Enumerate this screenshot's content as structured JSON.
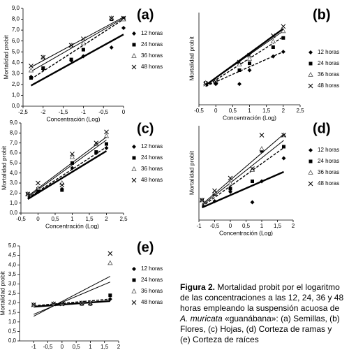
{
  "chart_data": [
    {
      "type": "scatter",
      "panel_label": "(a)",
      "x_label": "Concentración (Log)",
      "y_label": "Mortalidad probit",
      "xlim": [
        -2.5,
        0
      ],
      "ylim": [
        0,
        9
      ],
      "xticks": [
        {
          "value": -2.5,
          "label": "-2,5"
        },
        -2,
        {
          "value": -1.5,
          "label": "-1,5"
        },
        -1,
        {
          "value": -0.5,
          "label": "-0,5"
        },
        0
      ],
      "yticks": [
        {
          "value": 0,
          "label": "0,0"
        },
        {
          "value": 1,
          "label": "1,0"
        },
        {
          "value": 2,
          "label": "2,0"
        },
        {
          "value": 3,
          "label": "3,0"
        },
        {
          "value": 4,
          "label": "4,0"
        },
        {
          "value": 5,
          "label": "5,0"
        },
        {
          "value": 6,
          "label": "6,0"
        },
        {
          "value": 7,
          "label": "7,0"
        },
        {
          "value": 8,
          "label": "8,0"
        },
        {
          "value": 9,
          "label": "9,0"
        }
      ],
      "x": [
        -2.3,
        -2,
        -1.3,
        -1,
        -0.3,
        0
      ],
      "series": [
        {
          "name": "12 horas",
          "color": "#000000",
          "marker": "diamond",
          "line": "bold",
          "values": [
            2.7,
            3.4,
            4.2,
            4.6,
            5.4,
            7.2
          ],
          "trend": {
            "x": [
              -2.3,
              0
            ],
            "values": [
              1.9,
              6.6
            ]
          }
        },
        {
          "name": "24 horas",
          "color": "#000000",
          "marker": "square",
          "line": "dashed",
          "values": [
            2.6,
            3.5,
            4.3,
            5.2,
            8.0,
            8.1
          ],
          "trend": {
            "x": [
              -2.3,
              0
            ],
            "values": [
              2.5,
              8.0
            ]
          }
        },
        {
          "name": "36 horas",
          "color": "#000000",
          "marker": "triangle",
          "line": "thin",
          "values": [
            3.3,
            4.5,
            5.6,
            5.8,
            8.1,
            8.0
          ],
          "trend": {
            "x": [
              -2.3,
              0
            ],
            "values": [
              3.2,
              8.1
            ]
          }
        },
        {
          "name": "48 horas",
          "color": "#000000",
          "marker": "cross",
          "line": "thin",
          "values": [
            3.7,
            4.5,
            5.6,
            6.2,
            8.1,
            8.1
          ],
          "trend": {
            "x": [
              -2.3,
              0
            ],
            "values": [
              3.6,
              8.2
            ]
          }
        }
      ]
    },
    {
      "type": "scatter",
      "panel_label": "(b)",
      "x_label": "Concentración (Log)",
      "y_label": "Mortalidad probit",
      "xlim": [
        -0.5,
        2.5
      ],
      "ylim": [
        0,
        8
      ],
      "xticks": [
        {
          "value": -0.5,
          "label": "-0,5"
        },
        0,
        {
          "value": 0.5,
          "label": "0,5"
        },
        1,
        {
          "value": 1.5,
          "label": "1,5"
        },
        2,
        {
          "value": 2.5,
          "label": "2,5"
        }
      ],
      "x": [
        -0.3,
        0,
        0.7,
        1,
        1.7,
        2
      ],
      "series": [
        {
          "name": "12 horas",
          "color": "#000000",
          "marker": "diamond",
          "line": "dashed",
          "values": [
            1.9,
            1.8,
            1.8,
            3.0,
            4.2,
            4.6
          ],
          "trend": {
            "x": [
              -0.3,
              2
            ],
            "values": [
              1.6,
              4.6
            ]
          }
        },
        {
          "name": "24 horas",
          "color": "#000000",
          "marker": "square",
          "line": "dashed",
          "values": [
            1.9,
            1.9,
            3.0,
            3.6,
            5.0,
            5.8
          ],
          "trend": {
            "x": [
              -0.3,
              2
            ],
            "values": [
              1.6,
              5.9
            ]
          }
        },
        {
          "name": "36 horas",
          "color": "#000000",
          "marker": "triangle",
          "line": "thin",
          "values": [
            1.9,
            2.1,
            3.5,
            4.0,
            5.5,
            6.4
          ],
          "trend": {
            "x": [
              -0.3,
              2
            ],
            "values": [
              1.7,
              6.4
            ]
          }
        },
        {
          "name": "48 horas",
          "color": "#000000",
          "marker": "cross",
          "line": "bold",
          "values": [
            1.8,
            2.0,
            3.7,
            4.3,
            6.0,
            6.8
          ],
          "trend": {
            "x": [
              -0.3,
              2
            ],
            "values": [
              1.7,
              6.6
            ]
          }
        }
      ]
    },
    {
      "type": "scatter",
      "panel_label": "(c)",
      "x_label": "Concentración (Log)",
      "y_label": "Mortalidad probit",
      "xlim": [
        -0.5,
        2.5
      ],
      "ylim": [
        0,
        9
      ],
      "xticks": [
        {
          "value": -0.5,
          "label": "-0,5"
        },
        0,
        {
          "value": 0.5,
          "label": "0,5"
        },
        1,
        {
          "value": 1.5,
          "label": "1,5"
        },
        2,
        {
          "value": 2.5,
          "label": "2,5"
        }
      ],
      "yticks": [
        {
          "value": 0,
          "label": "0,0"
        },
        {
          "value": 1,
          "label": "1,0"
        },
        {
          "value": 2,
          "label": "2,0"
        },
        {
          "value": 3,
          "label": "3,0"
        },
        {
          "value": 4,
          "label": "4,0"
        },
        {
          "value": 5,
          "label": "5,0"
        },
        {
          "value": 6,
          "label": "6,0"
        },
        {
          "value": 7,
          "label": "7,0"
        },
        {
          "value": 8,
          "label": "8,0"
        },
        {
          "value": 9,
          "label": "9,0"
        }
      ],
      "x": [
        -0.3,
        0,
        0.7,
        1,
        1.7,
        2
      ],
      "series": [
        {
          "name": "12 horas",
          "color": "#000000",
          "marker": "diamond",
          "line": "bold",
          "values": [
            1.9,
            2.1,
            2.4,
            4.5,
            6.0,
            6.5
          ],
          "trend": {
            "x": [
              -0.3,
              2
            ],
            "values": [
              1.4,
              6.2
            ]
          }
        },
        {
          "name": "24 horas",
          "color": "#000000",
          "marker": "square",
          "line": "dashed",
          "values": [
            1.9,
            2.4,
            2.3,
            5.0,
            6.1,
            6.9
          ],
          "trend": {
            "x": [
              -0.3,
              2
            ],
            "values": [
              1.5,
              6.6
            ]
          }
        },
        {
          "name": "36 horas",
          "color": "#000000",
          "marker": "triangle",
          "line": "thin",
          "values": [
            1.9,
            2.5,
            3.0,
            5.6,
            6.9,
            7.7
          ],
          "trend": {
            "x": [
              -0.3,
              2
            ],
            "values": [
              1.6,
              7.3
            ]
          }
        },
        {
          "name": "48 horas",
          "color": "#000000",
          "marker": "cross",
          "line": "thin",
          "values": [
            1.9,
            3.0,
            2.8,
            5.9,
            7.0,
            8.1
          ],
          "trend": {
            "x": [
              -0.3,
              2
            ],
            "values": [
              1.7,
              7.6
            ]
          }
        }
      ]
    },
    {
      "type": "scatter",
      "panel_label": "(d)",
      "x_label": "Concentración (Log)",
      "y_label": "Mortalidad probit",
      "xlim": [
        -1,
        2
      ],
      "ylim": [
        0,
        9
      ],
      "xticks": [
        -1,
        {
          "value": -0.5,
          "label": "-0,5"
        },
        0,
        {
          "value": 0.5,
          "label": "0,5"
        },
        1,
        {
          "value": 1.5,
          "label": "1,5"
        },
        2
      ],
      "x": [
        -0.9,
        -0.5,
        0,
        0.7,
        1,
        1.7
      ],
      "series": [
        {
          "name": "12 horas",
          "color": "#000000",
          "marker": "diamond",
          "line": "bold",
          "values": [
            1.9,
            1.8,
            2.7,
            1.7,
            3.7,
            5.9
          ],
          "trend": {
            "x": [
              -0.9,
              1.7
            ],
            "values": [
              1.2,
              4.6
            ]
          }
        },
        {
          "name": "24 horas",
          "color": "#000000",
          "marker": "square",
          "line": "dashed",
          "values": [
            1.9,
            2.5,
            3.0,
            3.7,
            6.6,
            7.0
          ],
          "trend": {
            "x": [
              -0.9,
              1.7
            ],
            "values": [
              1.3,
              6.9
            ]
          }
        },
        {
          "name": "36 horas",
          "color": "#000000",
          "marker": "triangle",
          "line": "thin",
          "values": [
            1.9,
            2.6,
            3.5,
            4.8,
            6.8,
            8.1
          ],
          "trend": {
            "x": [
              -0.9,
              1.7
            ],
            "values": [
              1.4,
              7.6
            ]
          }
        },
        {
          "name": "48 horas",
          "color": "#000000",
          "marker": "cross",
          "line": "thin",
          "values": [
            1.9,
            2.8,
            4.0,
            4.9,
            8.1,
            8.1
          ],
          "trend": {
            "x": [
              -0.9,
              1.7
            ],
            "values": [
              1.5,
              8.2
            ]
          }
        }
      ]
    },
    {
      "type": "scatter",
      "panel_label": "(e)",
      "x_label": "Concentración (Log)",
      "y_label": "Mortalidad probit",
      "xlim": [
        -1.5,
        2
      ],
      "ylim": [
        0,
        5
      ],
      "xticks": [
        -1,
        {
          "value": -0.5,
          "label": "-0,5"
        },
        0,
        {
          "value": 0.5,
          "label": "0,5"
        },
        1,
        {
          "value": 1.5,
          "label": "1,5"
        },
        2
      ],
      "yticks": [
        {
          "value": 0,
          "label": "0,0"
        },
        {
          "value": 0.5,
          "label": "0,5"
        },
        {
          "value": 1,
          "label": "1,0"
        },
        {
          "value": 1.5,
          "label": "1,5"
        },
        {
          "value": 2,
          "label": "2,0"
        },
        {
          "value": 2.5,
          "label": "2,5"
        },
        {
          "value": 3,
          "label": "3,0"
        },
        {
          "value": 3.5,
          "label": "3,5"
        },
        {
          "value": 4,
          "label": "4,0"
        },
        {
          "value": 4.5,
          "label": "4,5"
        },
        {
          "value": 5,
          "label": "5,0"
        }
      ],
      "x": [
        -1,
        -0.3,
        0,
        0.7,
        1,
        1.7
      ],
      "series": [
        {
          "name": "12 horas",
          "color": "#000000",
          "marker": "diamond",
          "line": "bold",
          "values": [
            1.9,
            1.95,
            1.95,
            1.95,
            1.95,
            2.2
          ],
          "trend": {
            "x": [
              -1,
              1.7
            ],
            "values": [
              1.8,
              2.1
            ]
          }
        },
        {
          "name": "24 horas",
          "color": "#000000",
          "marker": "square",
          "line": "dashed",
          "values": [
            1.9,
            1.95,
            1.95,
            1.95,
            1.95,
            2.4
          ],
          "trend": {
            "x": [
              -1,
              1.7
            ],
            "values": [
              1.85,
              2.2
            ]
          }
        },
        {
          "name": "36 horas",
          "color": "#000000",
          "marker": "triangle",
          "line": "thin",
          "values": [
            1.9,
            1.95,
            1.95,
            2.0,
            2.0,
            4.1
          ],
          "trend": {
            "x": [
              -1,
              1.7
            ],
            "values": [
              1.4,
              3.1
            ]
          }
        },
        {
          "name": "48 horas",
          "color": "#000000",
          "marker": "cross",
          "line": "thin",
          "values": [
            1.9,
            1.95,
            1.95,
            2.0,
            2.0,
            4.6
          ],
          "trend": {
            "x": [
              -1,
              1.7
            ],
            "values": [
              1.3,
              3.4
            ]
          }
        }
      ]
    }
  ],
  "caption": {
    "lead": "Figura 2.",
    "text1": " Mortalidad probit por el logaritmo de las concentraciones a las 12, 24, 36 y 48 horas  empleando la suspensión acuosa de ",
    "species": "A. muricata",
    "text2": " «guanábana»: (a) Semillas, (b) Flores, (c) Hojas, (d) Corteza de ramas y (e) Corteza de raíces"
  }
}
